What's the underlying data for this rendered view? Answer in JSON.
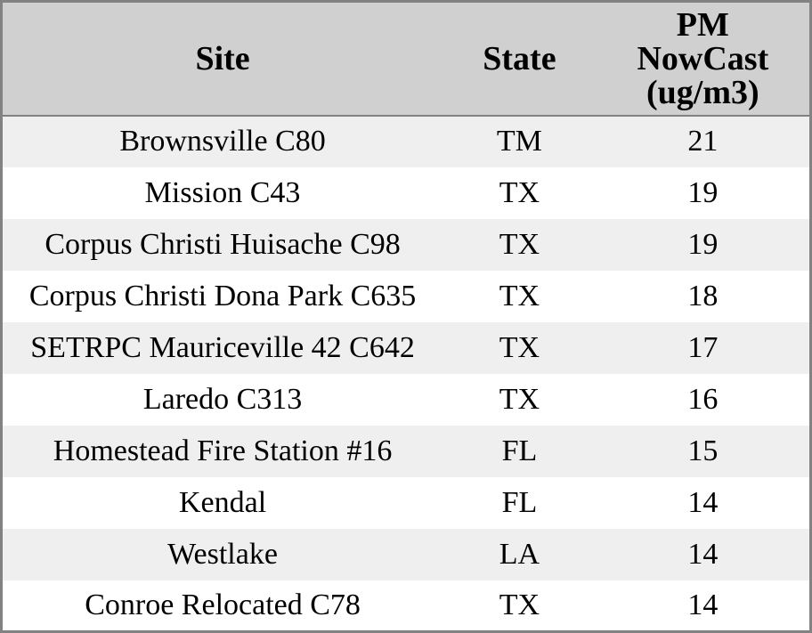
{
  "chart_data": {
    "type": "table",
    "title": "",
    "columns": [
      {
        "label": "Site"
      },
      {
        "label": "State"
      },
      {
        "label": "PM\nNowCast\n(ug/m3)"
      }
    ],
    "rows": [
      {
        "site": "Brownsville C80",
        "state": "TM",
        "value": "21"
      },
      {
        "site": "Mission C43",
        "state": "TX",
        "value": "19"
      },
      {
        "site": "Corpus Christi Huisache C98",
        "state": "TX",
        "value": "19"
      },
      {
        "site": "Corpus Christi Dona Park C635",
        "state": "TX",
        "value": "18"
      },
      {
        "site": "SETRPC Mauriceville 42 C642",
        "state": "TX",
        "value": "17"
      },
      {
        "site": "Laredo C313",
        "state": "TX",
        "value": "16"
      },
      {
        "site": "Homestead Fire Station #16",
        "state": "FL",
        "value": "15"
      },
      {
        "site": "Kendal",
        "state": "FL",
        "value": "14"
      },
      {
        "site": "Westlake",
        "state": "LA",
        "value": "14"
      },
      {
        "site": "Conroe Relocated C78",
        "state": "TX",
        "value": "14"
      }
    ]
  },
  "colors": {
    "header_bg": "#d0d0d0",
    "row_alt_bg": "#efefef",
    "row_bg": "#ffffff",
    "border": "#828282",
    "text": "#000000"
  }
}
